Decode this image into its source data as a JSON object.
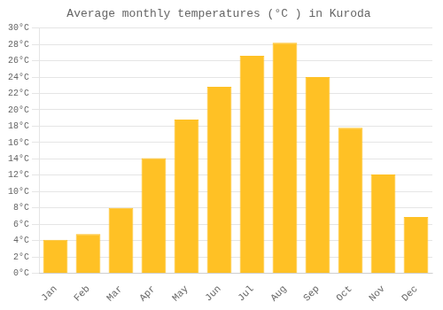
{
  "chart_data": {
    "type": "bar",
    "title": "Average monthly temperatures (°C ) in Kuroda",
    "categories": [
      "Jan",
      "Feb",
      "Mar",
      "Apr",
      "May",
      "Jun",
      "Jul",
      "Aug",
      "Sep",
      "Oct",
      "Nov",
      "Dec"
    ],
    "values": [
      4.1,
      4.8,
      8.0,
      14.1,
      18.8,
      22.8,
      26.6,
      28.2,
      24.0,
      17.8,
      12.1,
      6.9
    ],
    "color": "#FFC125",
    "ylim": [
      0,
      30
    ],
    "yticks": [
      {
        "value": 0,
        "label": "0°C"
      },
      {
        "value": 2,
        "label": "2°C"
      },
      {
        "value": 4,
        "label": "4°C"
      },
      {
        "value": 6,
        "label": "6°C"
      },
      {
        "value": 8,
        "label": "8°C"
      },
      {
        "value": 10,
        "label": "10°C"
      },
      {
        "value": 12,
        "label": "12°C"
      },
      {
        "value": 14,
        "label": "14°C"
      },
      {
        "value": 16,
        "label": "16°C"
      },
      {
        "value": 18,
        "label": "18°C"
      },
      {
        "value": 20,
        "label": "20°C"
      },
      {
        "value": 22,
        "label": "22°C"
      },
      {
        "value": 24,
        "label": "24°C"
      },
      {
        "value": 26,
        "label": "26°C"
      },
      {
        "value": 28,
        "label": "28°C"
      },
      {
        "value": 30,
        "label": "30°C"
      }
    ],
    "grid": true
  }
}
